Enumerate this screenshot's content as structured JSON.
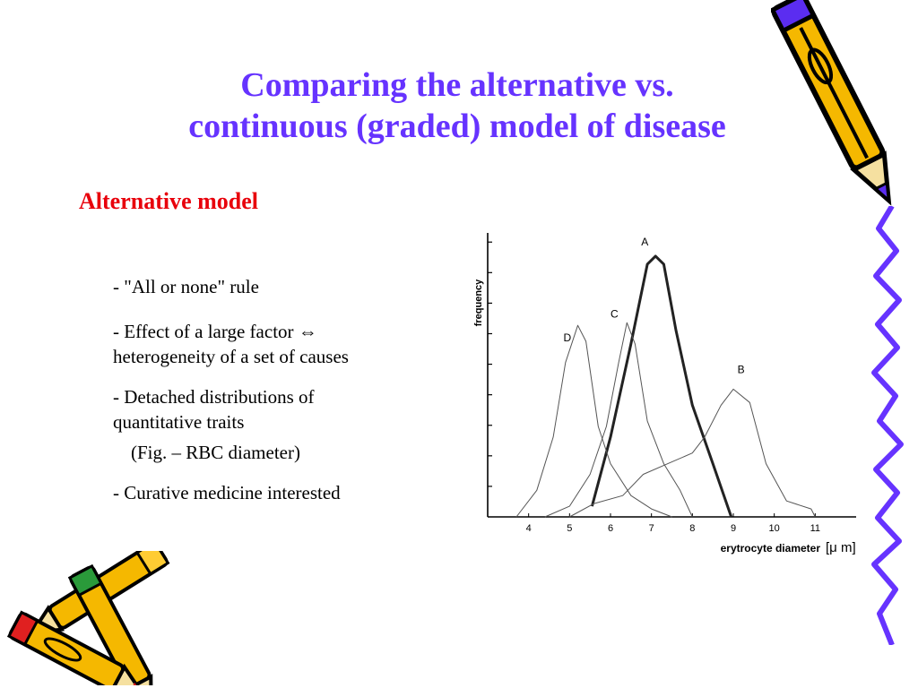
{
  "slide": {
    "title_lines": [
      "Comparing the alternative vs.",
      "continuous (graded) model of disease"
    ],
    "subtitle": "Alternative model",
    "bullets": [
      {
        "lines": [
          "- \"All or none\" rule"
        ]
      },
      {
        "lines": [
          "- Effect of a large factor ⇔",
          "heterogeneity of a set of causes"
        ]
      },
      {
        "lines": [
          "- Detached distributions of",
          "quantitative traits"
        ]
      },
      {
        "lines": [
          "(Fig. – RBC diameter)"
        ]
      },
      {
        "lines": [
          "- Curative medicine interested"
        ]
      }
    ],
    "colors": {
      "title": "#6633ff",
      "subtitle": "#e8000b",
      "squiggle": "#6633ff",
      "pencil_body": "#f5b800"
    },
    "decorations": [
      "pencil-top-right-icon",
      "pencils-bottom-left-icon",
      "squiggle-border-icon"
    ]
  },
  "chart_data": {
    "type": "line",
    "xlabel": "erytrocyte diameter",
    "xunit": "[μ m]",
    "ylabel": "frequency",
    "x_ticks": [
      4,
      5,
      6,
      7,
      8,
      9,
      10,
      11
    ],
    "xlim": [
      3.0,
      12.0
    ],
    "ylim": [
      0,
      1.0
    ],
    "y_tick_count": 9,
    "series": [
      {
        "name": "A",
        "weight": "thick",
        "points": [
          [
            5.55,
            0.04
          ],
          [
            6.0,
            0.3
          ],
          [
            6.5,
            0.65
          ],
          [
            6.9,
            0.95
          ],
          [
            7.1,
            0.98
          ],
          [
            7.3,
            0.95
          ],
          [
            7.6,
            0.7
          ],
          [
            8.0,
            0.42
          ],
          [
            8.5,
            0.2
          ],
          [
            8.95,
            0.0
          ]
        ]
      },
      {
        "name": "B",
        "weight": "thin",
        "points": [
          [
            5.0,
            0.0
          ],
          [
            5.6,
            0.05
          ],
          [
            6.3,
            0.08
          ],
          [
            6.8,
            0.16
          ],
          [
            7.4,
            0.2
          ],
          [
            8.0,
            0.24
          ],
          [
            8.3,
            0.3
          ],
          [
            8.7,
            0.42
          ],
          [
            9.0,
            0.48
          ],
          [
            9.4,
            0.43
          ],
          [
            9.8,
            0.2
          ],
          [
            10.3,
            0.06
          ],
          [
            10.9,
            0.03
          ],
          [
            11.0,
            0.0
          ]
        ]
      },
      {
        "name": "C",
        "weight": "thin",
        "points": [
          [
            4.4,
            0.0
          ],
          [
            5.0,
            0.04
          ],
          [
            5.5,
            0.16
          ],
          [
            5.9,
            0.34
          ],
          [
            6.2,
            0.58
          ],
          [
            6.4,
            0.73
          ],
          [
            6.6,
            0.65
          ],
          [
            6.9,
            0.36
          ],
          [
            7.3,
            0.2
          ],
          [
            7.7,
            0.1
          ],
          [
            8.0,
            0.0
          ]
        ]
      },
      {
        "name": "D",
        "weight": "thin",
        "points": [
          [
            3.7,
            0.0
          ],
          [
            4.2,
            0.1
          ],
          [
            4.6,
            0.3
          ],
          [
            4.9,
            0.58
          ],
          [
            5.2,
            0.72
          ],
          [
            5.4,
            0.66
          ],
          [
            5.7,
            0.34
          ],
          [
            6.0,
            0.2
          ],
          [
            6.5,
            0.08
          ],
          [
            7.0,
            0.03
          ],
          [
            7.5,
            0.0
          ]
        ]
      }
    ],
    "labels": [
      {
        "text": "A",
        "x": 6.75,
        "y": 1.02
      },
      {
        "text": "B",
        "x": 9.1,
        "y": 0.54
      },
      {
        "text": "C",
        "x": 6.0,
        "y": 0.75
      },
      {
        "text": "D",
        "x": 4.85,
        "y": 0.66
      }
    ]
  }
}
